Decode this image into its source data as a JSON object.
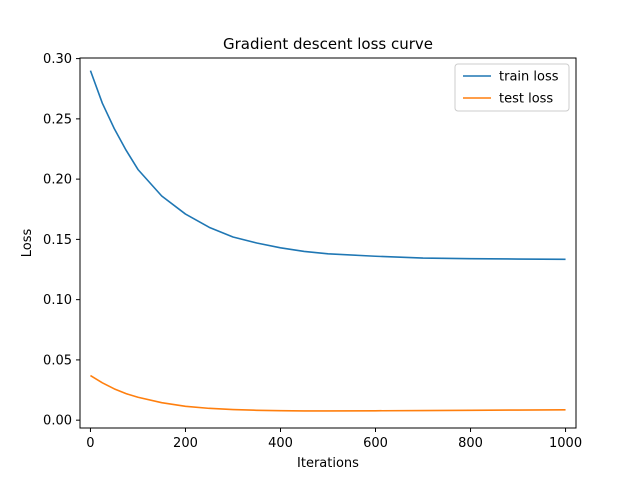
{
  "chart_data": {
    "type": "line",
    "title": "Gradient descent loss curve",
    "xlabel": "Iterations",
    "ylabel": "Loss",
    "xlim": [
      -22,
      1022
    ],
    "ylim": [
      -0.0065,
      0.3005
    ],
    "xticks": [
      0,
      200,
      400,
      600,
      800,
      1000
    ],
    "xtick_labels": [
      "0",
      "200",
      "400",
      "600",
      "800",
      "1000"
    ],
    "yticks": [
      0.0,
      0.05,
      0.1,
      0.15,
      0.2,
      0.25,
      0.3
    ],
    "ytick_labels": [
      "0.00",
      "0.05",
      "0.10",
      "0.15",
      "0.20",
      "0.25",
      "0.30"
    ],
    "grid": false,
    "legend": "top-right",
    "x": [
      0,
      25,
      50,
      75,
      100,
      150,
      200,
      250,
      300,
      350,
      400,
      450,
      500,
      600,
      700,
      800,
      900,
      1000
    ],
    "series": [
      {
        "name": "train loss",
        "color": "#1f77b4",
        "values": [
          0.29,
          0.263,
          0.242,
          0.224,
          0.208,
          0.186,
          0.171,
          0.16,
          0.152,
          0.147,
          0.143,
          0.14,
          0.138,
          0.136,
          0.1345,
          0.134,
          0.1337,
          0.1335
        ]
      },
      {
        "name": "test loss",
        "color": "#ff7f0e",
        "values": [
          0.037,
          0.031,
          0.026,
          0.022,
          0.019,
          0.0145,
          0.0115,
          0.0098,
          0.0088,
          0.0082,
          0.0079,
          0.0077,
          0.0077,
          0.0078,
          0.008,
          0.0082,
          0.0084,
          0.0086
        ]
      }
    ]
  }
}
